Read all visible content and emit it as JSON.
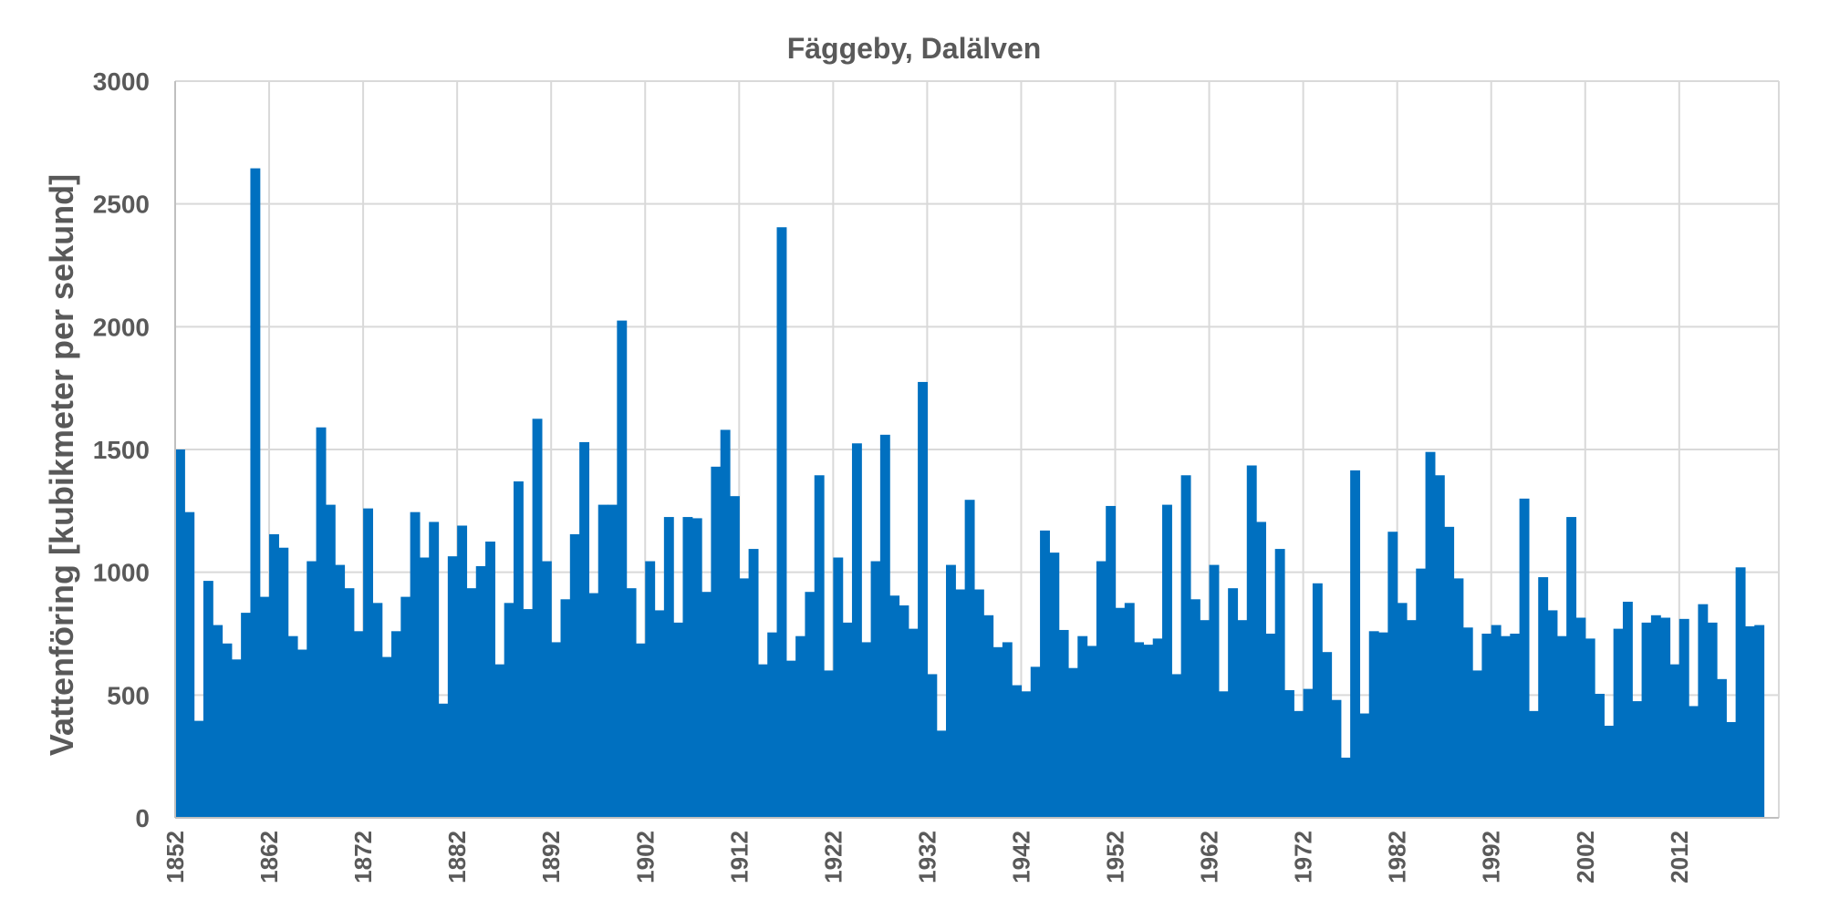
{
  "chart_data": {
    "type": "bar",
    "title": "Fäggeby, Dalälven",
    "ylabel": "Vattenföring [kubikmeter per sekund]",
    "xlabel": "",
    "ylim": [
      0,
      3000
    ],
    "yticks": [
      "0",
      "500",
      "1000",
      "1500",
      "2000",
      "2500",
      "3000"
    ],
    "xticks": [
      "1852",
      "1862",
      "1872",
      "1882",
      "1892",
      "1902",
      "1912",
      "1922",
      "1932",
      "1942",
      "1952",
      "1962",
      "1972",
      "1982",
      "1992",
      "2002",
      "2012"
    ],
    "grid": true,
    "color": "#0070c0",
    "x_start": 1852,
    "x_end": 2020,
    "values": [
      1500,
      1245,
      395,
      965,
      785,
      710,
      645,
      835,
      2645,
      900,
      1155,
      1100,
      740,
      685,
      1045,
      1590,
      1275,
      1030,
      935,
      760,
      1260,
      875,
      655,
      760,
      900,
      1245,
      1060,
      1205,
      465,
      1065,
      1190,
      935,
      1025,
      1125,
      625,
      875,
      1370,
      850,
      1625,
      1045,
      715,
      890,
      1155,
      1530,
      915,
      1275,
      1275,
      2025,
      935,
      710,
      1045,
      845,
      1225,
      795,
      1225,
      1220,
      920,
      1430,
      1580,
      1310,
      975,
      1095,
      625,
      755,
      2405,
      640,
      740,
      920,
      1395,
      600,
      1060,
      795,
      1525,
      715,
      1045,
      1560,
      905,
      865,
      770,
      1775,
      585,
      355,
      1030,
      930,
      1295,
      930,
      825,
      695,
      715,
      540,
      515,
      615,
      1170,
      1080,
      765,
      610,
      740,
      700,
      1045,
      1270,
      855,
      875,
      715,
      705,
      730,
      1275,
      585,
      1395,
      890,
      805,
      1030,
      515,
      935,
      805,
      1435,
      1205,
      750,
      1095,
      520,
      435,
      525,
      955,
      675,
      480,
      245,
      1415,
      425,
      760,
      755,
      1165,
      875,
      805,
      1015,
      1490,
      1395,
      1185,
      975,
      775,
      600,
      750,
      785,
      740,
      750,
      1300,
      435,
      980,
      845,
      740,
      1225,
      815,
      730,
      505,
      375,
      770,
      880,
      475,
      795,
      825,
      815,
      625,
      810,
      455,
      870,
      795,
      565,
      390,
      1020,
      780,
      785
    ]
  }
}
